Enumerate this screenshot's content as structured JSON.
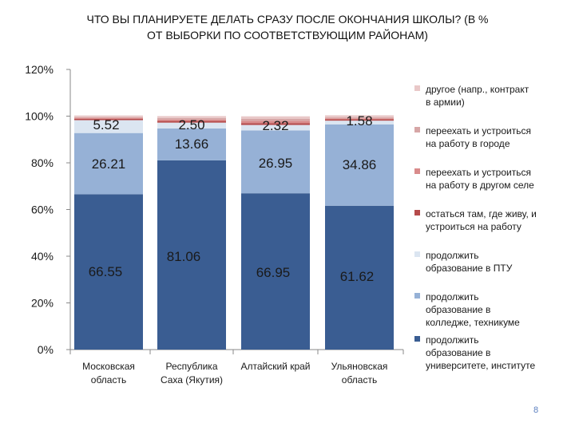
{
  "title_line1": "ЧТО ВЫ ПЛАНИРУЕТЕ ДЕЛАТЬ СРАЗУ ПОСЛЕ ОКОНЧАНИЯ ШКОЛЫ? (В %",
  "title_line2": "ОТ ВЫБОРКИ ПО СООТВЕТСТВУЮЩИМ РАЙОНАМ)",
  "slide_number": "8",
  "chart_data": {
    "type": "bar",
    "stacked": true,
    "title": "ЧТО ВЫ ПЛАНИРУЕТЕ ДЕЛАТЬ СРАЗУ ПОСЛЕ ОКОНЧАНИЯ ШКОЛЫ? (В % ОТ ВЫБОРКИ ПО СООТВЕТСТВУЮЩИМ РАЙОНАМ)",
    "categories": [
      [
        "Московская",
        "область"
      ],
      [
        "Республика",
        "Саха (Якутия)"
      ],
      [
        "Алтайский край"
      ],
      [
        "Ульяновская",
        "область"
      ]
    ],
    "ylim": [
      0,
      120
    ],
    "yticks": [
      0,
      20,
      40,
      60,
      80,
      100,
      120
    ],
    "ytick_labels": [
      "0%",
      "20%",
      "40%",
      "60%",
      "80%",
      "100%",
      "120%"
    ],
    "grid": false,
    "legend_position": "right",
    "series": [
      {
        "name": "продолжить образование в университете, институте",
        "legend_lines": [
          "продолжить",
          "образование в",
          "университете, институте"
        ],
        "color": "#3a5d92",
        "values": [
          66.55,
          81.06,
          66.95,
          61.62
        ],
        "labels": [
          "66.55",
          "81.06",
          "66.95",
          "61.62"
        ]
      },
      {
        "name": "продолжить образование в колледже, техникуме",
        "legend_lines": [
          "продолжить",
          "образование в",
          "колледже, техникуме"
        ],
        "color": "#96b1d6",
        "values": [
          26.21,
          13.66,
          26.95,
          34.86
        ],
        "labels": [
          "26.21",
          "13.66",
          "26.95",
          "34.86"
        ]
      },
      {
        "name": "продолжить образование в ПТУ",
        "legend_lines": [
          "продолжить",
          "образование в ПТУ"
        ],
        "color": "#dbe5f1",
        "values": [
          5.52,
          2.5,
          2.32,
          1.58
        ],
        "labels": [
          "5.52",
          "2.50",
          "2.32",
          "1.58"
        ]
      },
      {
        "name": "остаться там, где живу, и устроиться на работу",
        "legend_lines": [
          "остаться там, где живу, и",
          "устроиться на работу"
        ],
        "color": "#b54a4a",
        "values": [
          0.6,
          0.7,
          0.8,
          0.6
        ],
        "labels": []
      },
      {
        "name": "переехать и устроиться на работу в другом селе",
        "legend_lines": [
          "переехать и устроиться",
          "на работу в другом селе"
        ],
        "color": "#d98b8b",
        "values": [
          0.4,
          0.6,
          1.0,
          0.4
        ],
        "labels": []
      },
      {
        "name": "переехать и устроиться на работу в городе",
        "legend_lines": [
          "переехать и устроиться",
          "на работу в городе"
        ],
        "color": "#d6a6a6",
        "values": [
          0.3,
          0.7,
          0.9,
          0.4
        ],
        "labels": []
      },
      {
        "name": "другое (напр., контракт в армии)",
        "legend_lines": [
          "другое (напр., контракт",
          "в армии)"
        ],
        "color": "#e9c8c8",
        "values": [
          0.7,
          0.8,
          1.0,
          0.9
        ],
        "labels": []
      }
    ]
  }
}
